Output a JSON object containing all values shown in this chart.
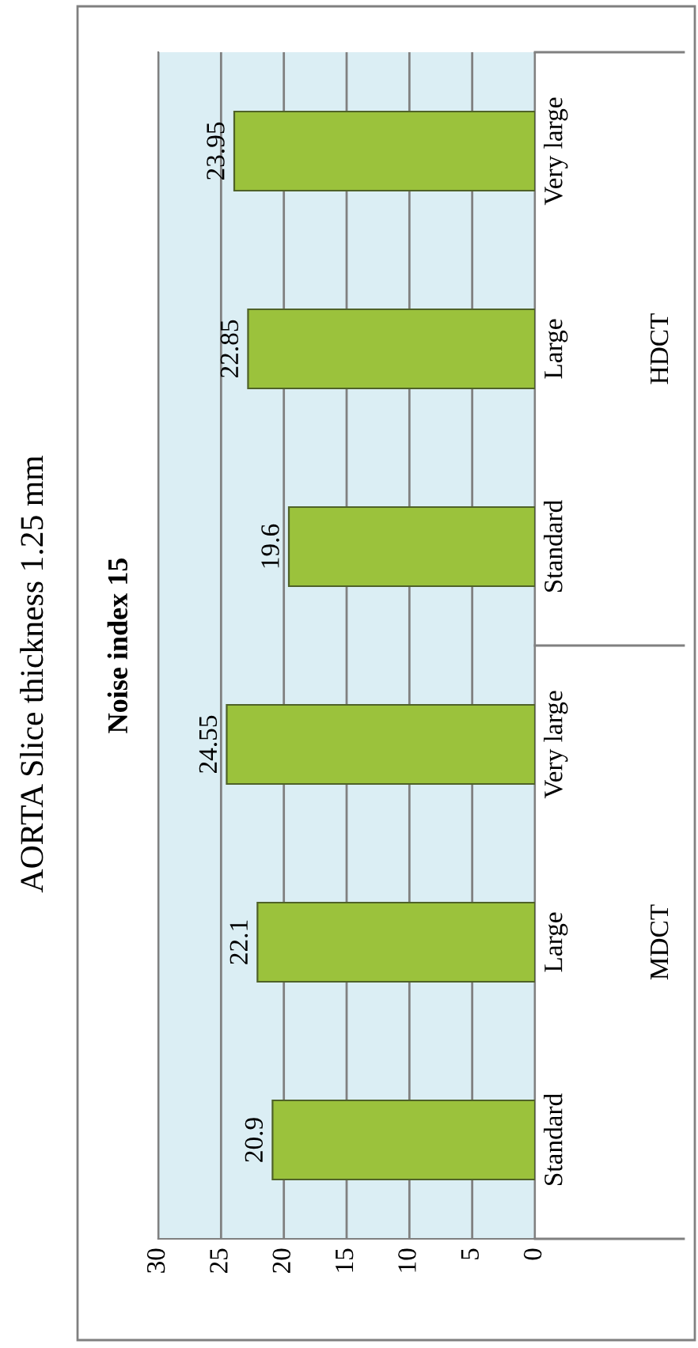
{
  "chart_data": {
    "type": "bar",
    "orientation": "horizontal",
    "title": "AORTA Slice thickness 1.25 mm",
    "subtitle": "Noise index 15",
    "categories": [
      "Very large",
      "Large",
      "Standard",
      "Very large",
      "Large",
      "Standard"
    ],
    "values": [
      23.95,
      22.85,
      19.6,
      24.55,
      22.1,
      20.9
    ],
    "color": "#9bc23c",
    "xlim": [
      30,
      0
    ],
    "xticks": [
      0,
      5,
      10,
      15,
      20,
      25,
      30
    ],
    "grid": "x",
    "data_labels": true,
    "annotations": [
      "HDCT",
      "MDCT"
    ]
  }
}
